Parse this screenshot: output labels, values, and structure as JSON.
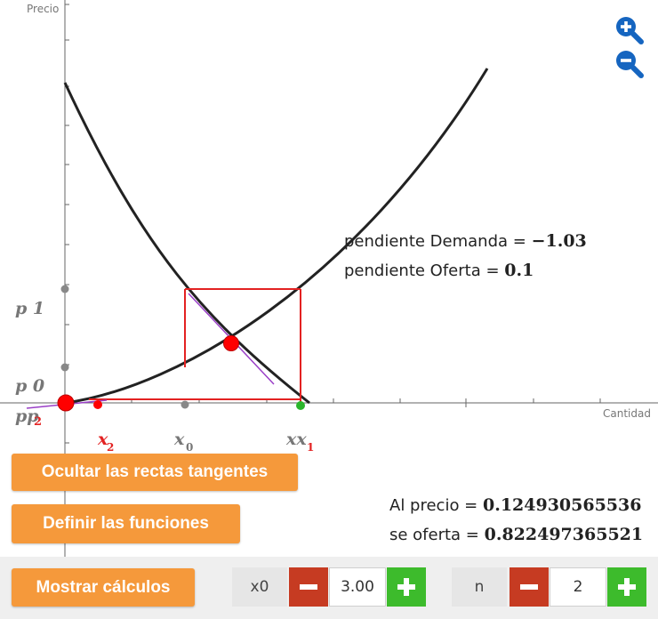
{
  "axes": {
    "y_label": "Precio",
    "x_label": "Cantidad"
  },
  "y_labels": {
    "p1": "p 1",
    "p0": "p 0",
    "p2_overlap": "pp",
    "p2_sub": "2"
  },
  "x_labels": {
    "x2": "x",
    "x2_sub": "2",
    "x0": "x",
    "x0_sub": "0",
    "x1": "xx",
    "x1_sub": "1"
  },
  "slopes": {
    "demand_label": "pendiente Demanda = ",
    "demand_value": "−1.03",
    "supply_label": "pendiente Oferta = ",
    "supply_value": "0.1"
  },
  "results": {
    "price_label": "Al precio = ",
    "price_value": "0.124930565536",
    "supply_label": "se oferta = ",
    "supply_value": "0.822497365521"
  },
  "buttons": {
    "hide_tangents": "Ocultar las rectas tangentes",
    "define_functions": "Definir las funciones",
    "show_calculations": "Mostrar cálculos"
  },
  "controls": {
    "x0_label": "x0",
    "x0_value": "3.00",
    "n_label": "n",
    "n_value": "2"
  },
  "colors": {
    "curve": "#222222",
    "box": "#e32222",
    "tangent": "#9a3fc7",
    "red_point": "#ff0000",
    "green_point": "#2bb52b",
    "button_orange": "#f5993b",
    "minus_red": "#c63b22",
    "plus_green": "#3dbb2c",
    "zoom_blue": "#1565c0"
  },
  "icons": {
    "zoom_in": "zoom-in-icon",
    "zoom_out": "zoom-out-icon",
    "minus": "minus-icon",
    "plus": "plus-icon"
  }
}
